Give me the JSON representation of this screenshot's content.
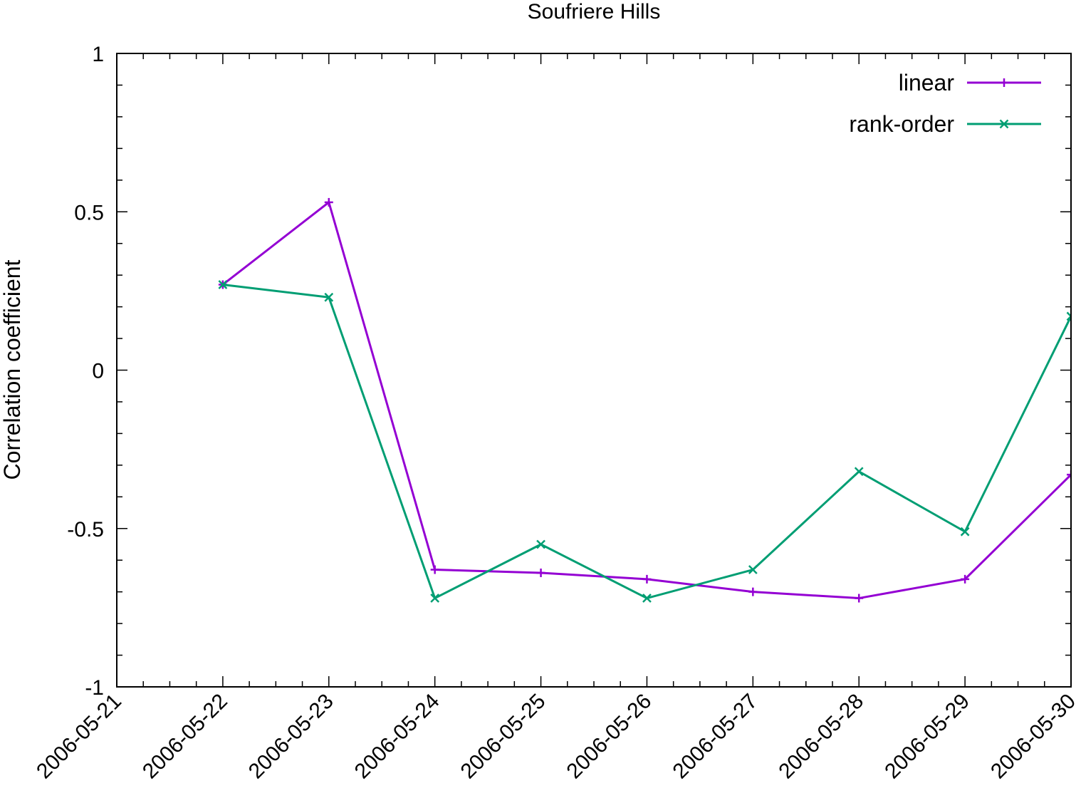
{
  "chart_data": {
    "type": "line",
    "title": "Soufriere Hills",
    "xlabel": "",
    "ylabel": "Correlation coefficient",
    "x": [
      "2006-05-22",
      "2006-05-23",
      "2006-05-24",
      "2006-05-25",
      "2006-05-26",
      "2006-05-27",
      "2006-05-28",
      "2006-05-29",
      "2006-05-30"
    ],
    "xlim": [
      "2006-05-21",
      "2006-05-30"
    ],
    "xticks": [
      "2006-05-21",
      "2006-05-22",
      "2006-05-23",
      "2006-05-24",
      "2006-05-25",
      "2006-05-26",
      "2006-05-27",
      "2006-05-28",
      "2006-05-29",
      "2006-05-30"
    ],
    "ylim": [
      -1,
      1
    ],
    "yticks": [
      {
        "value": 1,
        "label": "1"
      },
      {
        "value": 0.5,
        "label": "0.5"
      },
      {
        "value": 0,
        "label": "0"
      },
      {
        "value": -0.5,
        "label": "-0.5"
      },
      {
        "value": -1,
        "label": "-1"
      }
    ],
    "grid": false,
    "legend_position": "top-right",
    "series": [
      {
        "name": "linear",
        "color": "#9400d3",
        "marker": "plus",
        "values": [
          0.27,
          0.53,
          -0.63,
          -0.64,
          -0.66,
          -0.7,
          -0.72,
          -0.66,
          -0.33
        ]
      },
      {
        "name": "rank-order",
        "color": "#009e73",
        "marker": "cross",
        "values": [
          0.27,
          0.23,
          -0.72,
          -0.55,
          -0.72,
          -0.63,
          -0.32,
          -0.51,
          0.17
        ]
      }
    ]
  }
}
